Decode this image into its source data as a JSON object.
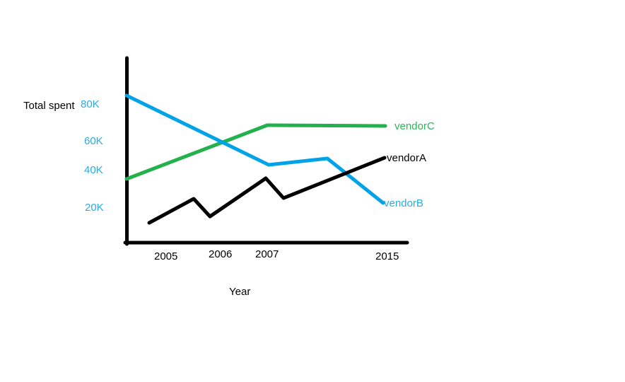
{
  "chart_data": {
    "type": "line",
    "title": "",
    "ylabel": "Total spent",
    "xlabel": "Year",
    "y_tick_labels": [
      "80K",
      "60K",
      "40K",
      "20K"
    ],
    "x_tick_labels": [
      "2005",
      "2006",
      "2007",
      "2015"
    ],
    "ylim_k": [
      0,
      90
    ],
    "grid": false,
    "legend_position": "labels-at-line-ends",
    "colors": {
      "background": "#FFFFFF",
      "axis": "#000000",
      "tick_text_blue": "#29ABE2",
      "vendorA": "#000000",
      "vendorB": "#00A2E8",
      "vendorC": "#22B14C"
    },
    "series": [
      {
        "name": "vendorA",
        "color": "#000000",
        "approx_values_k": [
          12,
          24,
          15,
          35,
          25,
          44
        ],
        "pixel_points": "211,315 274,281 297,306 376,252 401,280 544,223"
      },
      {
        "name": "vendorB",
        "color": "#00A2E8",
        "approx_values_k": [
          85,
          43,
          46,
          22
        ],
        "pixel_points": "179,135 380,233 463,224 542,287"
      },
      {
        "name": "vendorC",
        "color": "#22B14C",
        "approx_values_k": [
          35,
          68,
          68
        ],
        "pixel_points": "179,253 378,177 545,178"
      }
    ]
  }
}
